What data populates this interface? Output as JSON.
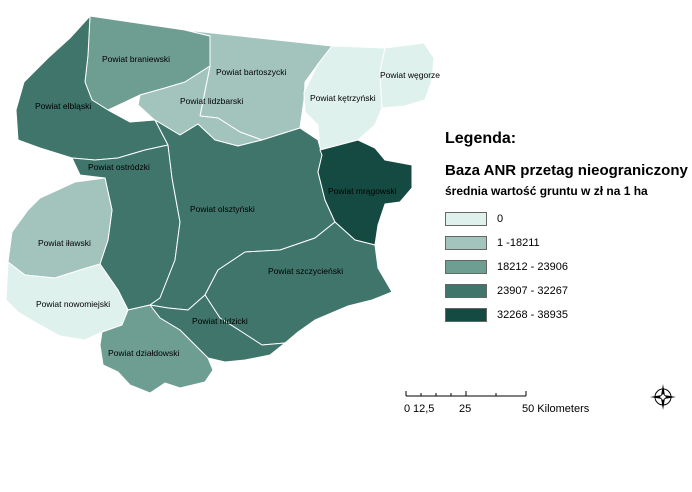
{
  "map": {
    "regions": [
      {
        "id": "braniewski",
        "label": "Powiat braniewski",
        "class": 2
      },
      {
        "id": "bartoszycki",
        "label": "Powiat bartoszycki",
        "class": 1
      },
      {
        "id": "ketrzynski",
        "label": "Powiat kętrzyński",
        "class": 0
      },
      {
        "id": "wegorzewski",
        "label": "Powiat węgorzewski",
        "class": 0
      },
      {
        "id": "elblaski",
        "label": "Powiat elbląski",
        "class": 3
      },
      {
        "id": "lidzbarski",
        "label": "Powiat lidzbarski",
        "class": 1
      },
      {
        "id": "ostrodzki",
        "label": "Powiat ostródzki",
        "class": 3
      },
      {
        "id": "olsztynski",
        "label": "Powiat olsztyński",
        "class": 3
      },
      {
        "id": "mragowski",
        "label": "Powiat mrągowski",
        "class": 4
      },
      {
        "id": "ilawski",
        "label": "Powiat iławski",
        "class": 1
      },
      {
        "id": "szczycienski",
        "label": "Powiat szczycieński",
        "class": 3
      },
      {
        "id": "nowomiejski",
        "label": "Powiat nowomiejski",
        "class": 0
      },
      {
        "id": "nidzicki",
        "label": "Powiat nidzicki",
        "class": 3
      },
      {
        "id": "dzialdowski",
        "label": "Powiat działdowski",
        "class": 2
      }
    ]
  },
  "legend": {
    "title": "Legenda:",
    "subtitle1": "Baza ANR przetag nieograniczony",
    "subtitle2": "średnia wartość gruntu w zł na 1 ha",
    "items": [
      {
        "label": "0",
        "color": "#dff1ed"
      },
      {
        "label": "1 -18211",
        "color": "#a3c4bc"
      },
      {
        "label": "18212 - 23906",
        "color": "#6e9d92"
      },
      {
        "label": "23907 - 32267",
        "color": "#3f756b"
      },
      {
        "label": "32268 - 38935",
        "color": "#154a42"
      }
    ]
  },
  "scale": {
    "ticks": [
      "0",
      "12,5",
      "25",
      "50 Kilometers"
    ]
  }
}
